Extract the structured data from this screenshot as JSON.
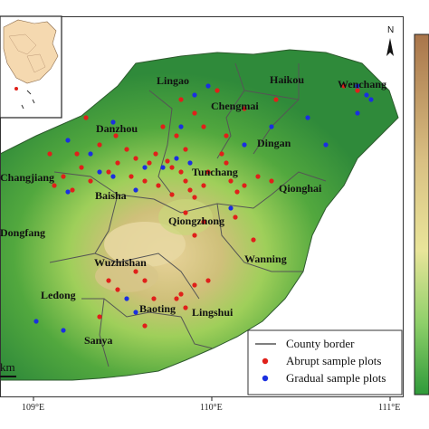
{
  "map": {
    "counties": [
      "Lingao",
      "Haikou",
      "Wenchang",
      "Chengmai",
      "Danzhou",
      "Dingan",
      "Changjiang",
      "Tunchang",
      "Qionghai",
      "Baisha",
      "Qiongzhong",
      "Dongfang",
      "Wanning",
      "Wuzhishan",
      "Ledong",
      "Baoting",
      "Lingshui",
      "Sanya"
    ],
    "axis_ticks": [
      "109°E",
      "110°E",
      "111°E"
    ],
    "scale_label": "km",
    "north_label": "N",
    "legend": {
      "county_border": "County border",
      "abrupt": "Abrupt sample plots",
      "gradual": "Gradual sample plots"
    },
    "colors": {
      "abrupt": "#e0201a",
      "gradual": "#1a2fe0",
      "sea": "#ffffff",
      "lowland": "#3f9a3a",
      "upland": "#d8c489",
      "border": "#555555"
    }
  }
}
